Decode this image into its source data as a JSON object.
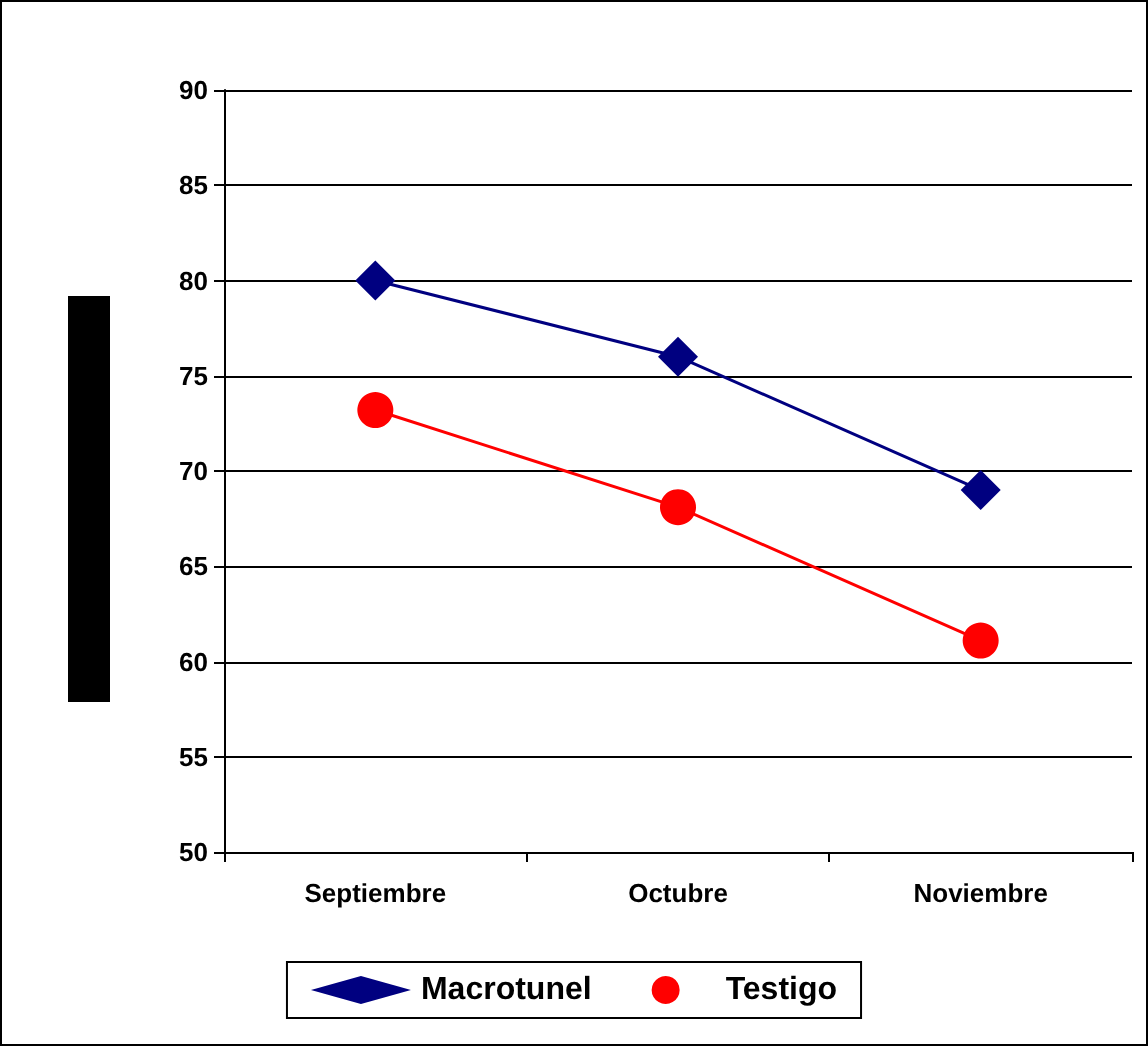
{
  "chart_data": {
    "type": "line",
    "categories": [
      "Septiembre",
      "Octubre",
      "Noviembre"
    ],
    "series": [
      {
        "name": "Macrotunel",
        "color": "#000080",
        "marker": "diamond",
        "values": [
          80,
          76,
          69
        ]
      },
      {
        "name": "Testigo",
        "color": "#ff0000",
        "marker": "circle",
        "values": [
          73.2,
          68.1,
          61.1
        ]
      }
    ],
    "ylim": [
      50,
      90
    ],
    "yticks": [
      50,
      55,
      60,
      65,
      70,
      75,
      80,
      85,
      90
    ],
    "grid": "y",
    "legend": "bottom"
  }
}
